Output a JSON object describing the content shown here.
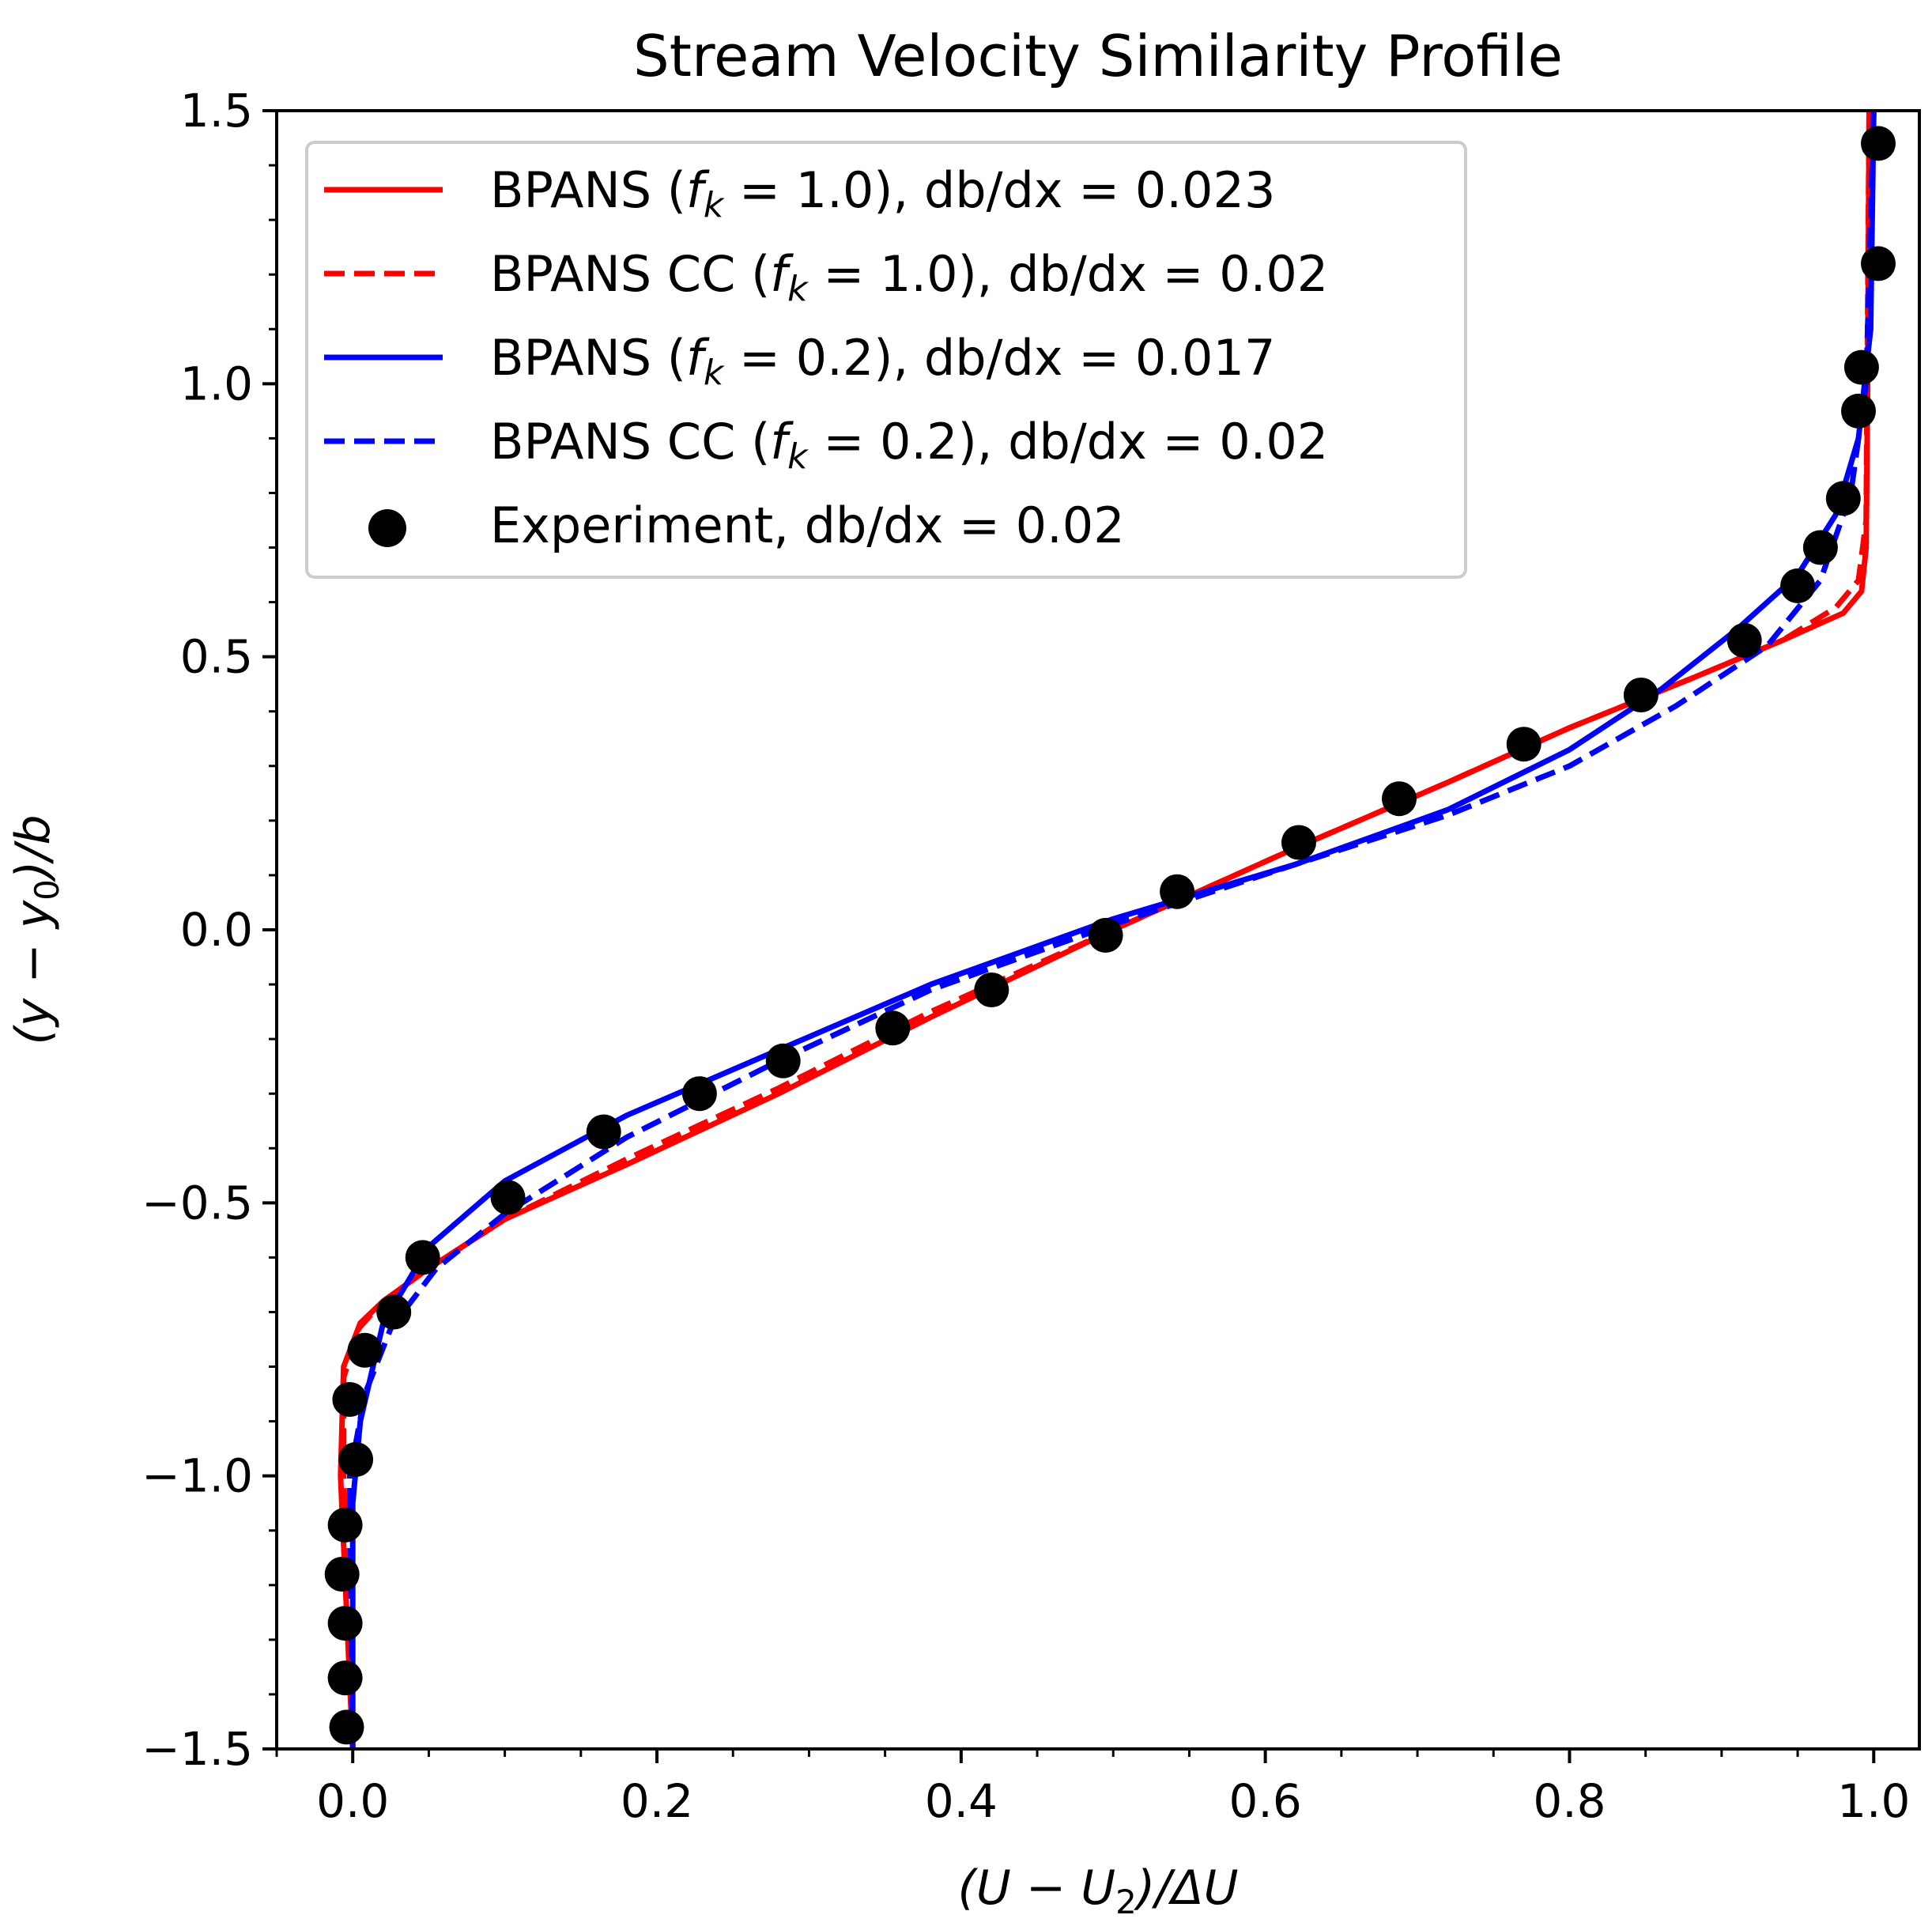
{
  "chart_data": {
    "type": "line",
    "title": "Stream Velocity Similarity Profile",
    "xlabel": {
      "pre": "(U − U",
      "sub": "2",
      "post": ")/ΔU"
    },
    "ylabel": {
      "pre": "(y − y",
      "sub": "0",
      "post": ")/b"
    },
    "xlim": [
      -0.05,
      1.03
    ],
    "ylim": [
      -1.5,
      1.5
    ],
    "xticks": [
      {
        "value": 0.0,
        "label": "0.0"
      },
      {
        "value": 0.2,
        "label": "0.2"
      },
      {
        "value": 0.4,
        "label": "0.4"
      },
      {
        "value": 0.6,
        "label": "0.6"
      },
      {
        "value": 0.8,
        "label": "0.8"
      },
      {
        "value": 1.0,
        "label": "1.0"
      }
    ],
    "yticks": [
      {
        "value": -1.5,
        "label": "−1.5"
      },
      {
        "value": -1.0,
        "label": "−1.0"
      },
      {
        "value": -0.5,
        "label": "−0.5"
      },
      {
        "value": 0.0,
        "label": "0.0"
      },
      {
        "value": 0.5,
        "label": "0.5"
      },
      {
        "value": 1.0,
        "label": "1.0"
      },
      {
        "value": 1.5,
        "label": "1.5"
      }
    ],
    "grid": false,
    "legend_position": "upper left",
    "series": [
      {
        "name": "BPANS (fk = 1.0), db/dx = 0.023",
        "legend": {
          "pre": "BPANS (",
          "f": "f",
          "sub": "k",
          "post": " = 1.0), db/dx = 0.023"
        },
        "color": "#ff0000",
        "dash": "solid",
        "x": [
          0.0,
          -0.008,
          -0.006,
          0.005,
          0.02,
          0.05,
          0.1,
          0.18,
          0.28,
          0.38,
          0.5,
          0.62,
          0.72,
          0.8,
          0.88,
          0.94,
          0.98,
          0.992,
          0.995,
          0.996,
          0.997
        ],
        "y": [
          -1.5,
          -1.0,
          -0.8,
          -0.72,
          -0.68,
          -0.62,
          -0.53,
          -0.43,
          -0.3,
          -0.16,
          0.0,
          0.15,
          0.27,
          0.37,
          0.46,
          0.53,
          0.58,
          0.62,
          0.7,
          1.0,
          1.5
        ]
      },
      {
        "name": "BPANS CC (fk = 1.0), db/dx = 0.02",
        "legend": {
          "pre": "BPANS CC (",
          "f": "f",
          "sub": "k",
          "post": " = 1.0), db/dx = 0.02"
        },
        "color": "#ff0000",
        "dash": "dashed",
        "x": [
          0.0,
          -0.006,
          -0.006,
          0.004,
          0.02,
          0.05,
          0.1,
          0.18,
          0.28,
          0.38,
          0.5,
          0.62,
          0.72,
          0.8,
          0.88,
          0.94,
          0.975,
          0.99,
          0.995,
          0.997
        ],
        "y": [
          -1.5,
          -1.0,
          -0.82,
          -0.73,
          -0.68,
          -0.62,
          -0.53,
          -0.42,
          -0.29,
          -0.15,
          0.0,
          0.15,
          0.27,
          0.37,
          0.46,
          0.53,
          0.59,
          0.64,
          0.75,
          1.5
        ]
      },
      {
        "name": "BPANS (fk = 0.2), db/dx = 0.017",
        "legend": {
          "pre": "BPANS (",
          "f": "f",
          "sub": "k",
          "post": " = 0.2), db/dx = 0.017"
        },
        "color": "#0000ff",
        "dash": "solid",
        "x": [
          0.0,
          0.0,
          0.005,
          0.02,
          0.05,
          0.1,
          0.18,
          0.28,
          0.38,
          0.5,
          0.62,
          0.72,
          0.8,
          0.86,
          0.91,
          0.95,
          0.975,
          0.99,
          0.998,
          1.0
        ],
        "y": [
          -1.5,
          -1.05,
          -0.9,
          -0.72,
          -0.58,
          -0.46,
          -0.34,
          -0.22,
          -0.1,
          0.02,
          0.12,
          0.22,
          0.33,
          0.44,
          0.55,
          0.65,
          0.76,
          0.9,
          1.1,
          1.5
        ]
      },
      {
        "name": "BPANS CC (fk = 0.2), db/dx = 0.02",
        "legend": {
          "pre": "BPANS CC (",
          "f": "f",
          "sub": "k",
          "post": " = 0.2), db/dx = 0.02"
        },
        "color": "#0000ff",
        "dash": "dashed",
        "x": [
          0.0,
          -0.002,
          0.008,
          0.025,
          0.055,
          0.1,
          0.18,
          0.28,
          0.38,
          0.5,
          0.62,
          0.72,
          0.8,
          0.87,
          0.93,
          0.965,
          0.985,
          0.995,
          1.0
        ],
        "y": [
          -1.5,
          -1.0,
          -0.85,
          -0.73,
          -0.62,
          -0.52,
          -0.38,
          -0.24,
          -0.11,
          0.01,
          0.12,
          0.21,
          0.3,
          0.41,
          0.52,
          0.64,
          0.8,
          1.0,
          1.5
        ]
      },
      {
        "name": "Experiment, db/dx = 0.02",
        "legend": {
          "pre": "Experiment, db/dx = 0.02",
          "f": "",
          "sub": "",
          "post": ""
        },
        "color": "#000000",
        "marker": "circle",
        "x": [
          1.003,
          1.003,
          0.992,
          0.99,
          0.98,
          0.965,
          0.95,
          0.915,
          0.847,
          0.77,
          0.688,
          0.622,
          0.542,
          0.495,
          0.42,
          0.355,
          0.283,
          0.228,
          0.165,
          0.102,
          0.046,
          0.027,
          0.008,
          -0.002,
          0.002,
          -0.005,
          -0.007,
          -0.005,
          -0.005,
          -0.004
        ],
        "y": [
          1.44,
          1.22,
          1.03,
          0.95,
          0.79,
          0.7,
          0.63,
          0.53,
          0.43,
          0.34,
          0.24,
          0.16,
          0.07,
          -0.01,
          -0.11,
          -0.18,
          -0.24,
          -0.3,
          -0.37,
          -0.49,
          -0.6,
          -0.7,
          -0.77,
          -0.86,
          -0.97,
          -1.09,
          -1.18,
          -1.27,
          -1.37,
          -1.46
        ]
      }
    ]
  }
}
